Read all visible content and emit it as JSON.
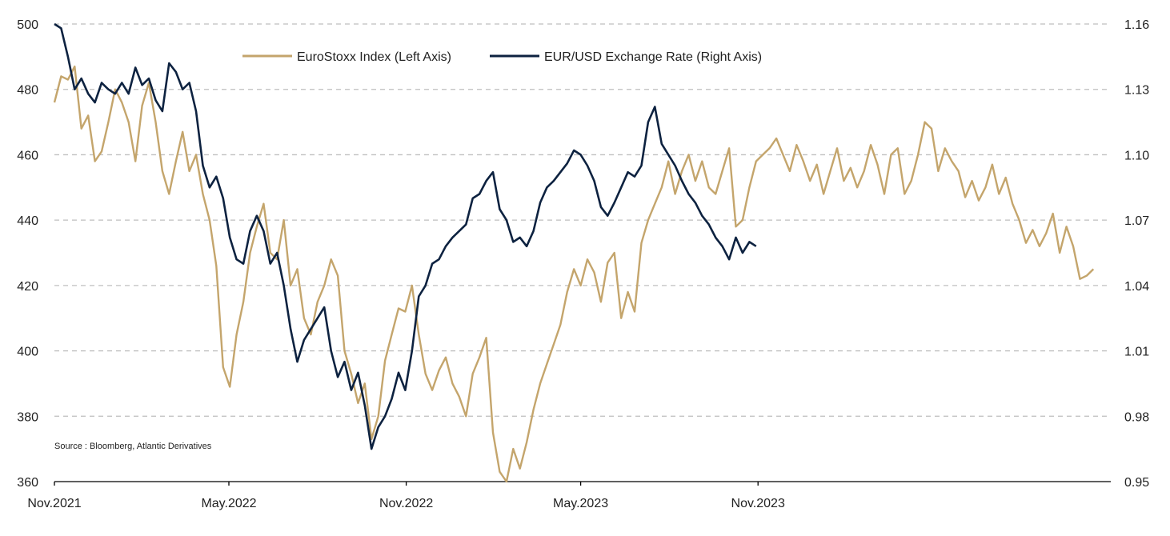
{
  "chart_data": {
    "type": "line",
    "title": "",
    "xlabel": "",
    "ylabel_left": "",
    "ylabel_right": "",
    "x_ticks": [
      "Nov.2021",
      "May.2022",
      "Nov.2022",
      "May.2023",
      "Nov.2023"
    ],
    "xlim": [
      "2021-11-01",
      "2024-11-01"
    ],
    "y_left": {
      "lim": [
        360,
        500
      ],
      "ticks": [
        "360",
        "380",
        "400",
        "420",
        "440",
        "460",
        "480",
        "500"
      ]
    },
    "y_right": {
      "lim": [
        0.95,
        1.16
      ],
      "ticks": [
        "0.95",
        "0.98",
        "1.01",
        "1.04",
        "1.07",
        "1.10",
        "1.13",
        "1.16"
      ]
    },
    "grid": "horizontal-dashed",
    "legend_position": "top-center",
    "source": "Source : Bloomberg, Atlantic Derivatives",
    "series": [
      {
        "name": "EuroStoxx Index (Left Axis)",
        "axis": "left",
        "color": "#C4A56C",
        "points": [
          [
            "2021-11-01",
            476
          ],
          [
            "2021-11-08",
            484
          ],
          [
            "2021-11-15",
            483
          ],
          [
            "2021-11-22",
            487
          ],
          [
            "2021-11-29",
            468
          ],
          [
            "2021-12-06",
            472
          ],
          [
            "2021-12-13",
            458
          ],
          [
            "2021-12-20",
            461
          ],
          [
            "2021-12-27",
            470
          ],
          [
            "2022-01-03",
            480
          ],
          [
            "2022-01-10",
            476
          ],
          [
            "2022-01-17",
            470
          ],
          [
            "2022-01-24",
            458
          ],
          [
            "2022-01-31",
            475
          ],
          [
            "2022-02-07",
            482
          ],
          [
            "2022-02-14",
            470
          ],
          [
            "2022-02-21",
            455
          ],
          [
            "2022-02-28",
            448
          ],
          [
            "2022-03-07",
            458
          ],
          [
            "2022-03-14",
            467
          ],
          [
            "2022-03-21",
            455
          ],
          [
            "2022-03-28",
            460
          ],
          [
            "2022-04-04",
            448
          ],
          [
            "2022-04-11",
            440
          ],
          [
            "2022-04-18",
            426
          ],
          [
            "2022-04-25",
            395
          ],
          [
            "2022-05-02",
            389
          ],
          [
            "2022-05-09",
            405
          ],
          [
            "2022-05-16",
            415
          ],
          [
            "2022-05-23",
            430
          ],
          [
            "2022-05-30",
            438
          ],
          [
            "2022-06-06",
            445
          ],
          [
            "2022-06-13",
            430
          ],
          [
            "2022-06-20",
            428
          ],
          [
            "2022-06-27",
            440
          ],
          [
            "2022-07-04",
            420
          ],
          [
            "2022-07-11",
            425
          ],
          [
            "2022-07-18",
            410
          ],
          [
            "2022-07-25",
            405
          ],
          [
            "2022-08-01",
            415
          ],
          [
            "2022-08-08",
            420
          ],
          [
            "2022-08-15",
            428
          ],
          [
            "2022-08-22",
            423
          ],
          [
            "2022-08-29",
            400
          ],
          [
            "2022-09-05",
            393
          ],
          [
            "2022-09-12",
            384
          ],
          [
            "2022-09-19",
            390
          ],
          [
            "2022-09-26",
            373
          ],
          [
            "2022-10-03",
            380
          ],
          [
            "2022-10-10",
            397
          ],
          [
            "2022-10-17",
            405
          ],
          [
            "2022-10-24",
            413
          ],
          [
            "2022-10-31",
            412
          ],
          [
            "2022-11-07",
            420
          ],
          [
            "2022-11-14",
            405
          ],
          [
            "2022-11-21",
            393
          ],
          [
            "2022-11-28",
            388
          ],
          [
            "2022-12-05",
            394
          ],
          [
            "2022-12-12",
            398
          ],
          [
            "2022-12-19",
            390
          ],
          [
            "2022-12-26",
            386
          ],
          [
            "2023-01-02",
            380
          ],
          [
            "2023-01-09",
            393
          ],
          [
            "2023-01-16",
            398
          ],
          [
            "2023-01-23",
            404
          ],
          [
            "2023-01-30",
            375
          ],
          [
            "2023-02-06",
            363
          ],
          [
            "2023-02-13",
            360
          ],
          [
            "2023-02-20",
            370
          ],
          [
            "2023-02-27",
            364
          ],
          [
            "2023-03-06",
            372
          ],
          [
            "2023-03-13",
            382
          ],
          [
            "2023-03-20",
            390
          ],
          [
            "2023-03-27",
            396
          ],
          [
            "2023-04-03",
            402
          ],
          [
            "2023-04-10",
            408
          ],
          [
            "2023-04-17",
            418
          ],
          [
            "2023-04-24",
            425
          ],
          [
            "2023-05-01",
            420
          ],
          [
            "2023-05-08",
            428
          ],
          [
            "2023-05-15",
            424
          ],
          [
            "2023-05-22",
            415
          ],
          [
            "2023-05-29",
            427
          ],
          [
            "2023-06-05",
            430
          ],
          [
            "2023-06-12",
            410
          ],
          [
            "2023-06-19",
            418
          ],
          [
            "2023-06-26",
            412
          ],
          [
            "2023-07-03",
            433
          ],
          [
            "2023-07-10",
            440
          ],
          [
            "2023-07-17",
            445
          ],
          [
            "2023-07-24",
            450
          ],
          [
            "2023-07-31",
            458
          ],
          [
            "2023-08-07",
            448
          ],
          [
            "2023-08-14",
            455
          ],
          [
            "2023-08-21",
            460
          ],
          [
            "2023-08-28",
            452
          ],
          [
            "2023-09-04",
            458
          ],
          [
            "2023-09-11",
            450
          ],
          [
            "2023-09-18",
            448
          ],
          [
            "2023-09-25",
            455
          ],
          [
            "2023-10-02",
            462
          ],
          [
            "2023-10-09",
            438
          ],
          [
            "2023-10-16",
            440
          ],
          [
            "2023-10-23",
            450
          ],
          [
            "2023-10-30",
            458
          ],
          [
            "2023-11-06",
            460
          ],
          [
            "2023-11-13",
            462
          ],
          [
            "2023-11-20",
            465
          ],
          [
            "2023-11-27",
            460
          ],
          [
            "2023-12-04",
            455
          ],
          [
            "2023-12-11",
            463
          ],
          [
            "2023-12-18",
            458
          ],
          [
            "2023-12-25",
            452
          ],
          [
            "2024-01-01",
            457
          ],
          [
            "2024-01-08",
            448
          ],
          [
            "2024-01-15",
            455
          ],
          [
            "2024-01-22",
            462
          ],
          [
            "2024-01-29",
            452
          ],
          [
            "2024-02-05",
            456
          ],
          [
            "2024-02-12",
            450
          ],
          [
            "2024-02-19",
            455
          ],
          [
            "2024-02-26",
            463
          ],
          [
            "2024-03-04",
            457
          ],
          [
            "2024-03-11",
            448
          ],
          [
            "2024-03-18",
            460
          ],
          [
            "2024-03-25",
            462
          ],
          [
            "2024-04-01",
            448
          ],
          [
            "2024-04-08",
            452
          ],
          [
            "2024-04-15",
            460
          ],
          [
            "2024-04-22",
            470
          ],
          [
            "2024-04-29",
            468
          ],
          [
            "2024-05-06",
            455
          ],
          [
            "2024-05-13",
            462
          ],
          [
            "2024-05-20",
            458
          ],
          [
            "2024-05-27",
            455
          ],
          [
            "2024-06-03",
            447
          ],
          [
            "2024-06-10",
            452
          ],
          [
            "2024-06-17",
            446
          ],
          [
            "2024-06-24",
            450
          ],
          [
            "2024-07-01",
            457
          ],
          [
            "2024-07-08",
            448
          ],
          [
            "2024-07-15",
            453
          ],
          [
            "2024-07-22",
            445
          ],
          [
            "2024-07-29",
            440
          ],
          [
            "2024-08-05",
            433
          ],
          [
            "2024-08-12",
            437
          ],
          [
            "2024-08-19",
            432
          ],
          [
            "2024-08-26",
            436
          ],
          [
            "2024-09-02",
            442
          ],
          [
            "2024-09-09",
            430
          ],
          [
            "2024-09-16",
            438
          ],
          [
            "2024-09-23",
            432
          ],
          [
            "2024-09-30",
            422
          ],
          [
            "2024-10-07",
            423
          ],
          [
            "2024-10-14",
            425
          ]
        ]
      },
      {
        "name": "EUR/USD Exchange Rate (Right Axis)",
        "axis": "right",
        "color": "#0D2240",
        "points": [
          [
            "2021-11-01",
            1.16
          ],
          [
            "2021-11-08",
            1.158
          ],
          [
            "2021-11-15",
            1.145
          ],
          [
            "2021-11-22",
            1.13
          ],
          [
            "2021-11-29",
            1.135
          ],
          [
            "2021-12-06",
            1.128
          ],
          [
            "2021-12-13",
            1.124
          ],
          [
            "2021-12-20",
            1.133
          ],
          [
            "2021-12-27",
            1.13
          ],
          [
            "2022-01-03",
            1.128
          ],
          [
            "2022-01-10",
            1.133
          ],
          [
            "2022-01-17",
            1.128
          ],
          [
            "2022-01-24",
            1.14
          ],
          [
            "2022-01-31",
            1.132
          ],
          [
            "2022-02-07",
            1.135
          ],
          [
            "2022-02-14",
            1.125
          ],
          [
            "2022-02-21",
            1.12
          ],
          [
            "2022-02-28",
            1.142
          ],
          [
            "2022-03-07",
            1.138
          ],
          [
            "2022-03-14",
            1.13
          ],
          [
            "2022-03-21",
            1.133
          ],
          [
            "2022-03-28",
            1.12
          ],
          [
            "2022-04-04",
            1.095
          ],
          [
            "2022-04-11",
            1.085
          ],
          [
            "2022-04-18",
            1.09
          ],
          [
            "2022-04-25",
            1.08
          ],
          [
            "2022-05-02",
            1.062
          ],
          [
            "2022-05-09",
            1.052
          ],
          [
            "2022-05-16",
            1.05
          ],
          [
            "2022-05-23",
            1.065
          ],
          [
            "2022-05-30",
            1.072
          ],
          [
            "2022-06-06",
            1.065
          ],
          [
            "2022-06-13",
            1.05
          ],
          [
            "2022-06-20",
            1.055
          ],
          [
            "2022-06-27",
            1.04
          ],
          [
            "2022-07-04",
            1.02
          ],
          [
            "2022-07-11",
            1.005
          ],
          [
            "2022-07-18",
            1.015
          ],
          [
            "2022-07-25",
            1.02
          ],
          [
            "2022-08-01",
            1.025
          ],
          [
            "2022-08-08",
            1.03
          ],
          [
            "2022-08-15",
            1.01
          ],
          [
            "2022-08-22",
            0.998
          ],
          [
            "2022-08-29",
            1.005
          ],
          [
            "2022-09-05",
            0.992
          ],
          [
            "2022-09-12",
            1.0
          ],
          [
            "2022-09-19",
            0.985
          ],
          [
            "2022-09-26",
            0.965
          ],
          [
            "2022-10-03",
            0.975
          ],
          [
            "2022-10-10",
            0.98
          ],
          [
            "2022-10-17",
            0.988
          ],
          [
            "2022-10-24",
            1.0
          ],
          [
            "2022-10-31",
            0.992
          ],
          [
            "2022-11-07",
            1.01
          ],
          [
            "2022-11-14",
            1.035
          ],
          [
            "2022-11-21",
            1.04
          ],
          [
            "2022-11-28",
            1.05
          ],
          [
            "2022-12-05",
            1.052
          ],
          [
            "2022-12-12",
            1.058
          ],
          [
            "2022-12-19",
            1.062
          ],
          [
            "2022-12-26",
            1.065
          ],
          [
            "2023-01-02",
            1.068
          ],
          [
            "2023-01-09",
            1.08
          ],
          [
            "2023-01-16",
            1.082
          ],
          [
            "2023-01-23",
            1.088
          ],
          [
            "2023-01-30",
            1.092
          ],
          [
            "2023-02-06",
            1.075
          ],
          [
            "2023-02-13",
            1.07
          ],
          [
            "2023-02-20",
            1.06
          ],
          [
            "2023-02-27",
            1.062
          ],
          [
            "2023-03-06",
            1.058
          ],
          [
            "2023-03-13",
            1.065
          ],
          [
            "2023-03-20",
            1.078
          ],
          [
            "2023-03-27",
            1.085
          ],
          [
            "2023-04-03",
            1.088
          ],
          [
            "2023-04-10",
            1.092
          ],
          [
            "2023-04-17",
            1.096
          ],
          [
            "2023-04-24",
            1.102
          ],
          [
            "2023-05-01",
            1.1
          ],
          [
            "2023-05-08",
            1.095
          ],
          [
            "2023-05-15",
            1.088
          ],
          [
            "2023-05-22",
            1.076
          ],
          [
            "2023-05-29",
            1.072
          ],
          [
            "2023-06-05",
            1.078
          ],
          [
            "2023-06-12",
            1.085
          ],
          [
            "2023-06-19",
            1.092
          ],
          [
            "2023-06-26",
            1.09
          ],
          [
            "2023-07-03",
            1.095
          ],
          [
            "2023-07-10",
            1.115
          ],
          [
            "2023-07-17",
            1.122
          ],
          [
            "2023-07-24",
            1.105
          ],
          [
            "2023-07-31",
            1.1
          ],
          [
            "2023-08-07",
            1.095
          ],
          [
            "2023-08-14",
            1.088
          ],
          [
            "2023-08-21",
            1.082
          ],
          [
            "2023-08-28",
            1.078
          ],
          [
            "2023-09-04",
            1.072
          ],
          [
            "2023-09-11",
            1.068
          ],
          [
            "2023-09-18",
            1.062
          ],
          [
            "2023-09-25",
            1.058
          ],
          [
            "2023-10-02",
            1.052
          ],
          [
            "2023-10-09",
            1.062
          ],
          [
            "2023-10-16",
            1.055
          ],
          [
            "2023-10-23",
            1.06
          ],
          [
            "2023-10-30",
            1.058
          ]
        ]
      }
    ]
  }
}
